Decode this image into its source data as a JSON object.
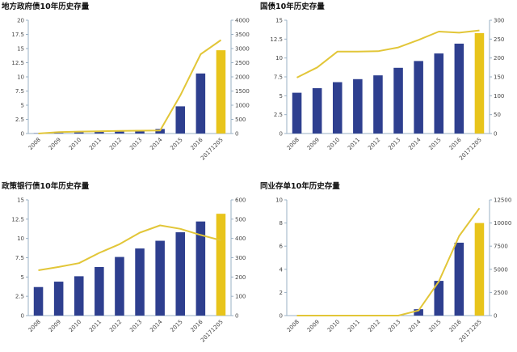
{
  "colors": {
    "bar": "#2e3f8f",
    "highlight": "#e8c41b",
    "line": "#e2c638",
    "axis": "#9ab0c4"
  },
  "chart_data": [
    {
      "type": "bar",
      "title": "地方政府债10年历史存量",
      "categories": [
        "2008",
        "2009",
        "2010",
        "2011",
        "2012",
        "2013",
        "2014",
        "2015",
        "2016",
        "20171205"
      ],
      "series": [
        {
          "axis": "left",
          "values": [
            0.05,
            0.1,
            0.2,
            0.3,
            0.5,
            0.6,
            0.8,
            4.8,
            10.6,
            14.7
          ]
        },
        {
          "axis": "right",
          "type": "line",
          "values": [
            0,
            50,
            70,
            80,
            90,
            100,
            110,
            1350,
            2800,
            3300
          ]
        }
      ],
      "highlight_index": 9,
      "ylim": [
        0,
        20
      ],
      "yticks": [
        "0",
        "2.5",
        "5",
        "7.5",
        "10",
        "12.5",
        "15",
        "17.5",
        "20"
      ],
      "y2lim": [
        0,
        4000
      ],
      "y2ticks": [
        "0",
        "500",
        "1000",
        "1500",
        "2000",
        "2500",
        "3000",
        "3500",
        "4000"
      ]
    },
    {
      "type": "bar",
      "title": "国债10年历史存量",
      "categories": [
        "2008",
        "2009",
        "2010",
        "2011",
        "2012",
        "2013",
        "2014",
        "2015",
        "2016",
        "20171205"
      ],
      "series": [
        {
          "axis": "left",
          "values": [
            5.4,
            6.0,
            6.8,
            7.2,
            7.7,
            8.7,
            9.6,
            10.6,
            11.9,
            13.3
          ]
        },
        {
          "axis": "right",
          "type": "line",
          "values": [
            148,
            175,
            217,
            217,
            218,
            228,
            248,
            270,
            267,
            273
          ]
        }
      ],
      "highlight_index": 9,
      "ylim": [
        0,
        15
      ],
      "yticks": [
        "0",
        "2.5",
        "5",
        "7.5",
        "10",
        "12.5",
        "15"
      ],
      "y2lim": [
        0,
        300
      ],
      "y2ticks": [
        "0",
        "50",
        "100",
        "150",
        "200",
        "250",
        "300"
      ]
    },
    {
      "type": "bar",
      "title": "政策银行债10年历史存量",
      "categories": [
        "2008",
        "2009",
        "2010",
        "2011",
        "2012",
        "2013",
        "2014",
        "2015",
        "2016",
        "20171205"
      ],
      "series": [
        {
          "axis": "left",
          "values": [
            3.7,
            4.4,
            5.1,
            6.3,
            7.6,
            8.7,
            9.7,
            10.8,
            12.2,
            13.2
          ]
        },
        {
          "axis": "right",
          "type": "line",
          "values": [
            235,
            252,
            272,
            325,
            370,
            430,
            468,
            450,
            418,
            390
          ]
        }
      ],
      "highlight_index": 9,
      "ylim": [
        0,
        15
      ],
      "yticks": [
        "0",
        "2.5",
        "5",
        "7.5",
        "10",
        "12.5",
        "15"
      ],
      "y2lim": [
        0,
        600
      ],
      "y2ticks": [
        "0",
        "100",
        "200",
        "300",
        "400",
        "500",
        "600"
      ]
    },
    {
      "type": "bar",
      "title": "同业存单10年历史存量",
      "categories": [
        "2008",
        "2009",
        "2010",
        "2011",
        "2012",
        "2013",
        "2014",
        "2015",
        "2016",
        "20171205"
      ],
      "series": [
        {
          "axis": "left",
          "values": [
            0,
            0,
            0,
            0,
            0,
            0,
            0.55,
            3.0,
            6.3,
            8.0
          ]
        },
        {
          "axis": "right",
          "type": "line",
          "values": [
            0,
            0,
            0,
            0,
            0,
            0,
            550,
            3700,
            8600,
            11600
          ]
        }
      ],
      "highlight_index": 9,
      "ylim": [
        0,
        10
      ],
      "yticks": [
        "0",
        "2",
        "4",
        "6",
        "8",
        "10"
      ],
      "y2lim": [
        0,
        12500
      ],
      "y2ticks": [
        "0",
        "2500",
        "5000",
        "7500",
        "10000",
        "12500"
      ]
    }
  ]
}
